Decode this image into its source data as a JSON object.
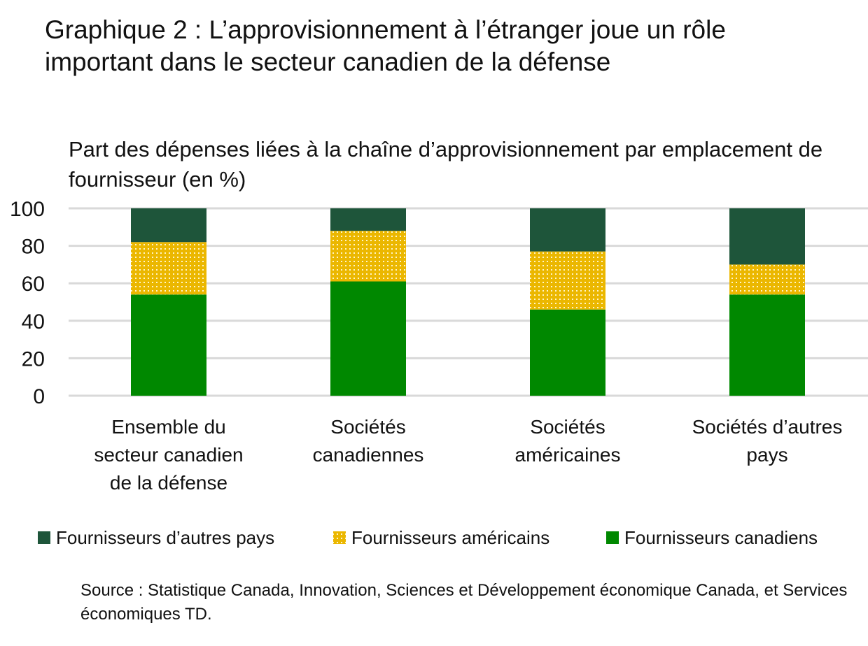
{
  "chart_data": {
    "type": "bar",
    "stacked": true,
    "title": "Graphique 2 : L’approvisionnement à l’étranger joue un rôle important dans le secteur canadien de la défense",
    "subtitle": "Part des dépenses liées à la chaîne d’approvisionnement par emplacement de fournisseur (en %)",
    "categories": [
      [
        "Ensemble du",
        "secteur canadien",
        "de la défense"
      ],
      [
        "Sociétés",
        "canadiennes"
      ],
      [
        "Sociétés",
        "américaines"
      ],
      [
        "Sociétés d’autres",
        "pays"
      ]
    ],
    "series": [
      {
        "name": "Fournisseurs canadiens",
        "values": [
          54,
          61,
          46,
          54
        ],
        "color": "#008800"
      },
      {
        "name": "Fournisseurs américains",
        "values": [
          28,
          27,
          31,
          16
        ],
        "color": "#ebb700",
        "pattern": "dotted"
      },
      {
        "name": "Fournisseurs d’autres pays",
        "values": [
          18,
          12,
          23,
          30
        ],
        "color": "#1e553a"
      }
    ],
    "legend_order": [
      "Fournisseurs d’autres pays",
      "Fournisseurs américains",
      "Fournisseurs canadiens"
    ],
    "legend_position": "bottom",
    "ylim": [
      0,
      100
    ],
    "yticks": [
      0,
      20,
      40,
      60,
      80,
      100
    ],
    "grid": true,
    "source": "Source : Statistique Canada, Innovation, Sciences et Développement économique Canada, et Services économiques TD."
  }
}
